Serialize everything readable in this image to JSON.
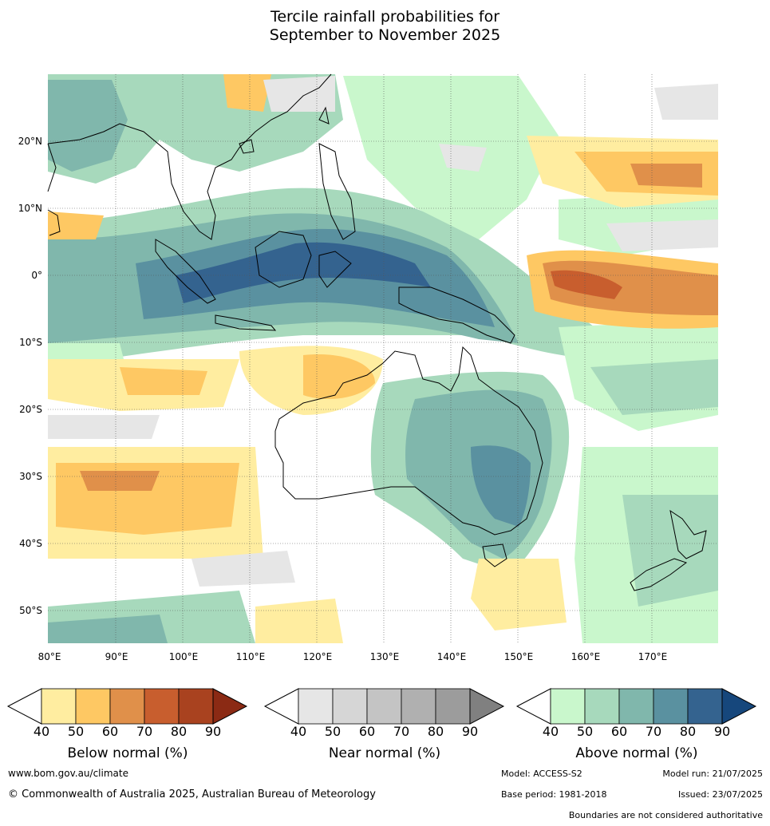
{
  "title_line1": "Tercile rainfall probabilities for",
  "title_line2": "September to November 2025",
  "map": {
    "lon_labels": [
      "80°E",
      "90°E",
      "100°E",
      "110°E",
      "120°E",
      "130°E",
      "140°E",
      "150°E",
      "160°E",
      "170°E"
    ],
    "lat_labels": [
      "20°N",
      "10°N",
      "0°",
      "10°S",
      "20°S",
      "30°S",
      "40°S",
      "50°S"
    ],
    "colors": {
      "below": [
        "#ffeda0",
        "#fec863",
        "#e0904a",
        "#c85e2e",
        "#a9421f",
        "#8b2a14"
      ],
      "near": [
        "#e6e6e6",
        "#d6d6d6",
        "#c4c4c4",
        "#b0b0b0",
        "#9c9c9c",
        "#808080"
      ],
      "above": [
        "#c9f7cc",
        "#a7d9bc",
        "#80b7ac",
        "#5a91a0",
        "#34638f",
        "#16477c"
      ]
    }
  },
  "legend": {
    "below": {
      "label": "Below normal (%)",
      "ticks": [
        "40",
        "50",
        "60",
        "70",
        "80",
        "90"
      ]
    },
    "near": {
      "label": "Near normal (%)",
      "ticks": [
        "40",
        "50",
        "60",
        "70",
        "80",
        "90"
      ]
    },
    "above": {
      "label": "Above normal (%)",
      "ticks": [
        "40",
        "50",
        "60",
        "70",
        "80",
        "90"
      ]
    }
  },
  "footer": {
    "url": "www.bom.gov.au/climate",
    "copyright": "© Commonwealth of Australia 2025, Australian Bureau of Meteorology",
    "model": "Model: ACCESS-S2",
    "model_run": "Model run: 21/07/2025",
    "base_period": "Base period: 1981-2018",
    "issued": "Issued: 23/07/2025",
    "disclaimer": "Boundaries are not considered authoritative"
  }
}
